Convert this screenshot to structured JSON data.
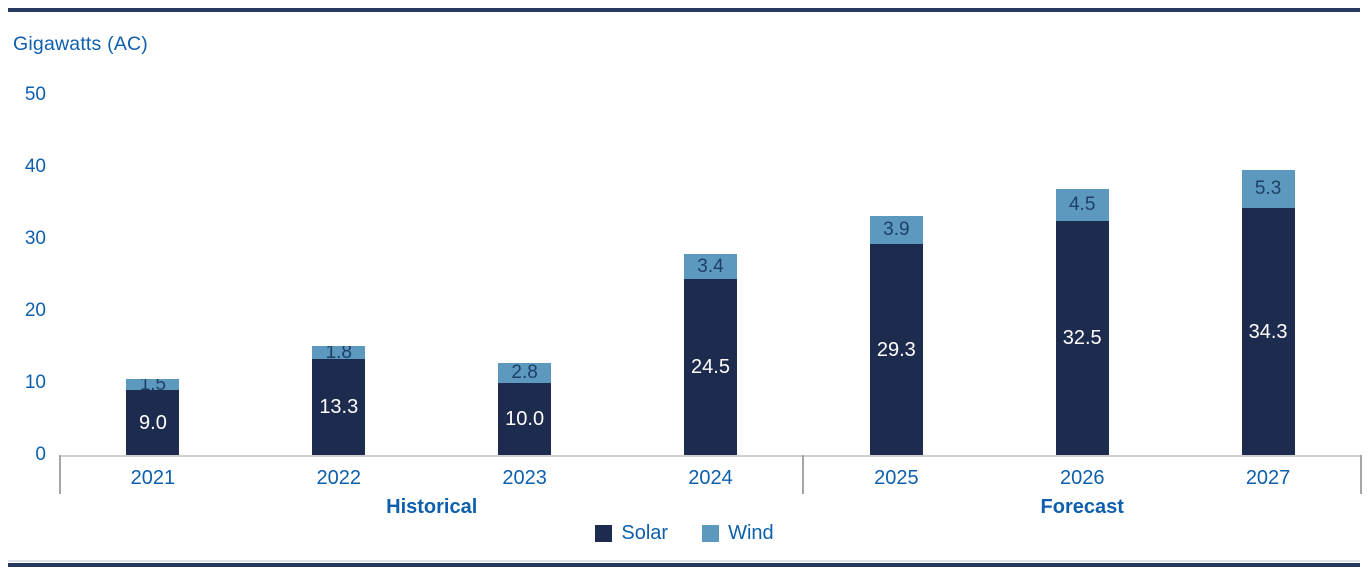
{
  "chart_data": {
    "type": "bar",
    "stacked": true,
    "title": "",
    "ylabel": "Gigawatts (AC)",
    "xlabel": "",
    "categories": [
      "2021",
      "2022",
      "2023",
      "2024",
      "2025",
      "2026",
      "2027"
    ],
    "series": [
      {
        "name": "Solar",
        "color": "#1d2c4e",
        "label_color": "#ffffff",
        "values": [
          9.0,
          13.3,
          10.0,
          24.5,
          29.3,
          32.5,
          34.3
        ]
      },
      {
        "name": "Wind",
        "color": "#5d99bf",
        "label_color": "#1d4066",
        "values": [
          1.5,
          1.8,
          2.8,
          3.4,
          3.9,
          4.5,
          5.3
        ]
      }
    ],
    "totals": [
      10.5,
      15.1,
      12.8,
      27.9,
      33.2,
      37.0,
      39.6
    ],
    "yticks": [
      0,
      10,
      20,
      30,
      40,
      50
    ],
    "ylim": [
      0,
      50
    ],
    "grid": false,
    "groups": [
      {
        "label": "Historical",
        "span": 4
      },
      {
        "label": "Forecast",
        "span": 3
      }
    ],
    "legend": {
      "position": "bottom-center",
      "entries": [
        "Solar",
        "Wind"
      ]
    }
  },
  "colors": {
    "text_blue": "#0e5fad",
    "rule_navy": "#27395f",
    "axis_line": "#cfcfcf",
    "separator": "#a6a6a6"
  }
}
